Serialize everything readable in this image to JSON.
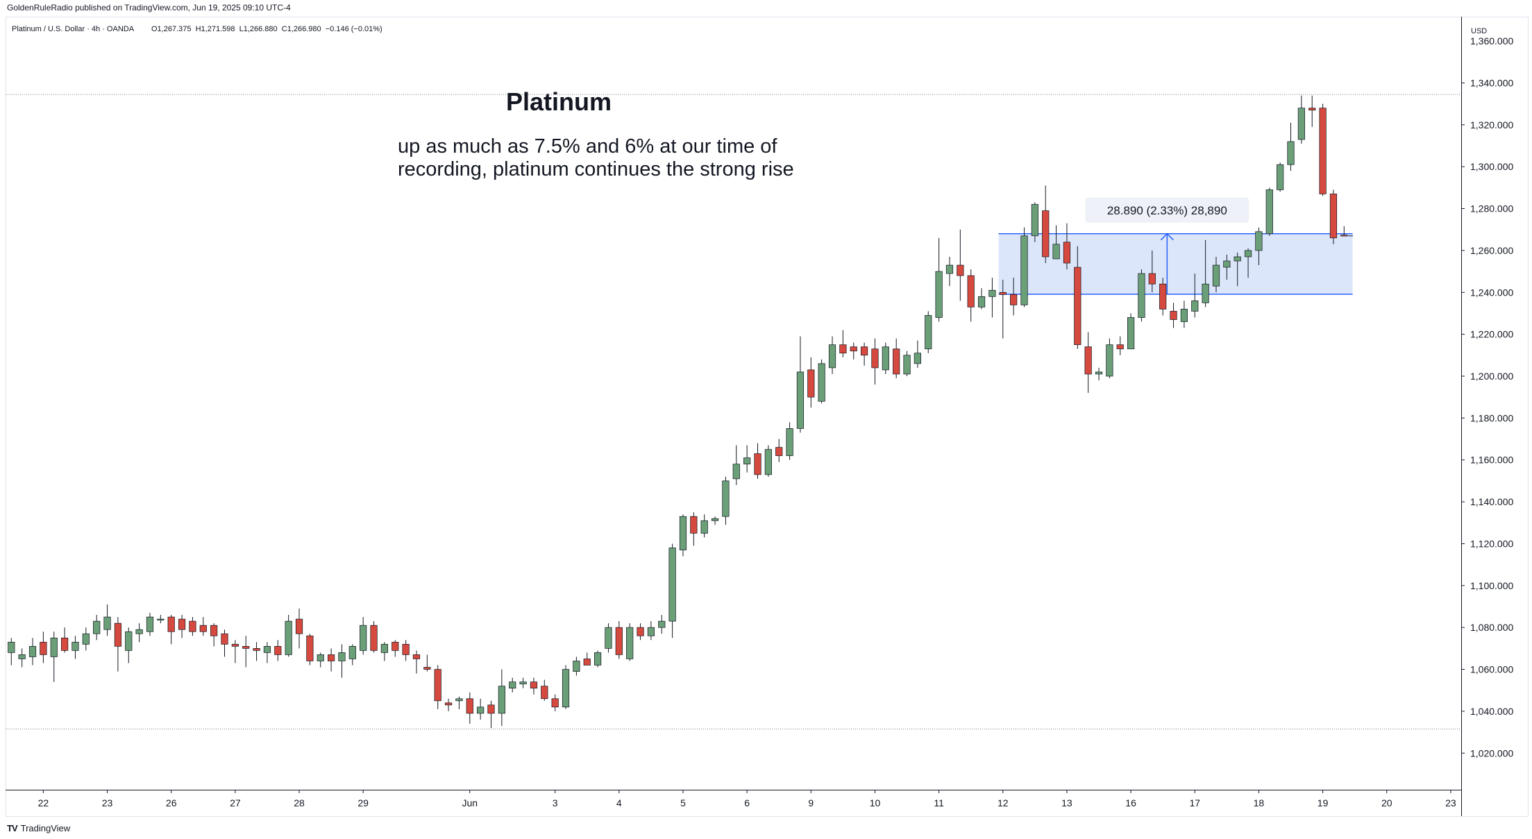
{
  "header": {
    "publisher": "GoldenRuleRadio published on TradingView.com, Jun 19, 2025 09:10 UTC-4",
    "symbol_line": "Platinum / U.S. Dollar · 4h · OANDA",
    "ohlc": "O1,267.375  H1,271.598  L1,266.880  C1,266.980  −0.146 (−0.01%)"
  },
  "footer": {
    "brand": "TradingView",
    "logo": "TV"
  },
  "annotation": {
    "title": "Platinum",
    "line1": "up as much as 7.5% and 6% at our time of",
    "line2": "recording, platinum continues the strong rise",
    "measure_label": "28.890 (2.33%) 28,890"
  },
  "colors": {
    "up": "#6a9f78",
    "down": "#d6493e",
    "range_fill": "#dce6fb",
    "range_line": "#2962ff",
    "axis_text": "#131722"
  },
  "chart_data": {
    "type": "candlestick",
    "title": "Platinum",
    "ylabel": "USD",
    "xlabel": "",
    "ylim": [
      1000,
      1360
    ],
    "grid": false,
    "y_ticks": [
      1020,
      1040,
      1060,
      1080,
      1100,
      1120,
      1140,
      1160,
      1180,
      1200,
      1220,
      1240,
      1260,
      1280,
      1300,
      1320,
      1340
    ],
    "y_tick_labels": [
      "1,020.000",
      "1,040.000",
      "1,060.000",
      "1,080.000",
      "1,100.000",
      "1,120.000",
      "1,140.000",
      "1,160.000",
      "1,180.000",
      "1,200.000",
      "1,220.000",
      "1,240.000",
      "1,260.000",
      "1,280.000",
      "1,300.000",
      "1,320.000",
      "1,340.000"
    ],
    "y_top_partial_label": "1,360.000",
    "x_labels": [
      {
        "label": "22",
        "index": 3
      },
      {
        "label": "23",
        "index": 9
      },
      {
        "label": "26",
        "index": 15
      },
      {
        "label": "27",
        "index": 21
      },
      {
        "label": "28",
        "index": 27
      },
      {
        "label": "29",
        "index": 33
      },
      {
        "label": "Jun",
        "index": 43
      },
      {
        "label": "3",
        "index": 51
      },
      {
        "label": "4",
        "index": 57
      },
      {
        "label": "5",
        "index": 63
      },
      {
        "label": "6",
        "index": 69
      },
      {
        "label": "9",
        "index": 75
      },
      {
        "label": "10",
        "index": 81
      },
      {
        "label": "11",
        "index": 87
      },
      {
        "label": "12",
        "index": 93
      },
      {
        "label": "13",
        "index": 99
      },
      {
        "label": "16",
        "index": 105
      },
      {
        "label": "17",
        "index": 111
      },
      {
        "label": "18",
        "index": 117
      },
      {
        "label": "19",
        "index": 123
      },
      {
        "label": "20",
        "index": 129
      },
      {
        "label": "23",
        "index": 135
      }
    ],
    "index_range": [
      -0.5,
      136.5
    ],
    "dotted_levels": [
      1334.5,
      1031.5
    ],
    "range_box": {
      "start_index": 92.6,
      "end_index": 125.8,
      "top": 1268,
      "bottom": 1239.1
    },
    "measure_arrow_index": 108.4,
    "candles": [
      {
        "o": 1068,
        "h": 1075,
        "l": 1062,
        "c": 1073
      },
      {
        "o": 1065,
        "h": 1070,
        "l": 1061,
        "c": 1067
      },
      {
        "o": 1066,
        "h": 1075,
        "l": 1062,
        "c": 1071
      },
      {
        "o": 1073,
        "h": 1078,
        "l": 1063,
        "c": 1067
      },
      {
        "o": 1066,
        "h": 1078,
        "l": 1054,
        "c": 1075
      },
      {
        "o": 1075,
        "h": 1080,
        "l": 1068,
        "c": 1069
      },
      {
        "o": 1069,
        "h": 1076,
        "l": 1065,
        "c": 1073
      },
      {
        "o": 1072,
        "h": 1080,
        "l": 1069,
        "c": 1077
      },
      {
        "o": 1077,
        "h": 1086,
        "l": 1074,
        "c": 1083
      },
      {
        "o": 1079,
        "h": 1091,
        "l": 1076,
        "c": 1085
      },
      {
        "o": 1082,
        "h": 1085,
        "l": 1059,
        "c": 1071
      },
      {
        "o": 1069,
        "h": 1080,
        "l": 1063,
        "c": 1078
      },
      {
        "o": 1077,
        "h": 1082,
        "l": 1073,
        "c": 1079
      },
      {
        "o": 1078,
        "h": 1087,
        "l": 1076,
        "c": 1085
      },
      {
        "o": 1084,
        "h": 1086,
        "l": 1082,
        "c": 1084
      },
      {
        "o": 1085,
        "h": 1086,
        "l": 1072,
        "c": 1078
      },
      {
        "o": 1084,
        "h": 1086,
        "l": 1075,
        "c": 1079
      },
      {
        "o": 1083,
        "h": 1085,
        "l": 1076,
        "c": 1078
      },
      {
        "o": 1081,
        "h": 1085,
        "l": 1076,
        "c": 1078
      },
      {
        "o": 1081,
        "h": 1082,
        "l": 1071,
        "c": 1076
      },
      {
        "o": 1077,
        "h": 1079,
        "l": 1066,
        "c": 1072
      },
      {
        "o": 1072,
        "h": 1074,
        "l": 1063,
        "c": 1071
      },
      {
        "o": 1071,
        "h": 1076,
        "l": 1061,
        "c": 1070
      },
      {
        "o": 1070,
        "h": 1073,
        "l": 1064,
        "c": 1069
      },
      {
        "o": 1068,
        "h": 1073,
        "l": 1063,
        "c": 1071
      },
      {
        "o": 1071,
        "h": 1074,
        "l": 1064,
        "c": 1067
      },
      {
        "o": 1067,
        "h": 1086,
        "l": 1066,
        "c": 1083
      },
      {
        "o": 1084,
        "h": 1089,
        "l": 1070,
        "c": 1077
      },
      {
        "o": 1076,
        "h": 1077,
        "l": 1062,
        "c": 1064
      },
      {
        "o": 1064,
        "h": 1068,
        "l": 1061,
        "c": 1067
      },
      {
        "o": 1067,
        "h": 1070,
        "l": 1059,
        "c": 1064
      },
      {
        "o": 1064,
        "h": 1072,
        "l": 1056,
        "c": 1068
      },
      {
        "o": 1065,
        "h": 1072,
        "l": 1062,
        "c": 1071
      },
      {
        "o": 1069,
        "h": 1085,
        "l": 1067,
        "c": 1081
      },
      {
        "o": 1081,
        "h": 1083,
        "l": 1068,
        "c": 1069
      },
      {
        "o": 1068,
        "h": 1073,
        "l": 1064,
        "c": 1072
      },
      {
        "o": 1073,
        "h": 1074,
        "l": 1066,
        "c": 1069
      },
      {
        "o": 1072,
        "h": 1074,
        "l": 1064,
        "c": 1067
      },
      {
        "o": 1067,
        "h": 1069,
        "l": 1058,
        "c": 1065
      },
      {
        "o": 1061,
        "h": 1067,
        "l": 1059,
        "c": 1060
      },
      {
        "o": 1060,
        "h": 1062,
        "l": 1041,
        "c": 1045
      },
      {
        "o": 1044,
        "h": 1046,
        "l": 1040,
        "c": 1043
      },
      {
        "o": 1045,
        "h": 1047,
        "l": 1041,
        "c": 1046
      },
      {
        "o": 1046,
        "h": 1049,
        "l": 1034,
        "c": 1039
      },
      {
        "o": 1039,
        "h": 1046,
        "l": 1036,
        "c": 1042
      },
      {
        "o": 1043,
        "h": 1045,
        "l": 1032,
        "c": 1039
      },
      {
        "o": 1039,
        "h": 1060,
        "l": 1033,
        "c": 1052
      },
      {
        "o": 1051,
        "h": 1056,
        "l": 1049,
        "c": 1054
      },
      {
        "o": 1053,
        "h": 1056,
        "l": 1051,
        "c": 1054
      },
      {
        "o": 1054,
        "h": 1056,
        "l": 1048,
        "c": 1051
      },
      {
        "o": 1052,
        "h": 1055,
        "l": 1045,
        "c": 1046
      },
      {
        "o": 1046,
        "h": 1048,
        "l": 1040,
        "c": 1042
      },
      {
        "o": 1042,
        "h": 1062,
        "l": 1041,
        "c": 1060
      },
      {
        "o": 1059,
        "h": 1066,
        "l": 1057,
        "c": 1064
      },
      {
        "o": 1065,
        "h": 1068,
        "l": 1062,
        "c": 1062
      },
      {
        "o": 1062,
        "h": 1069,
        "l": 1061,
        "c": 1068
      },
      {
        "o": 1070,
        "h": 1082,
        "l": 1068,
        "c": 1080
      },
      {
        "o": 1080,
        "h": 1083,
        "l": 1065,
        "c": 1067
      },
      {
        "o": 1065,
        "h": 1082,
        "l": 1064,
        "c": 1080
      },
      {
        "o": 1080,
        "h": 1082,
        "l": 1074,
        "c": 1076
      },
      {
        "o": 1076,
        "h": 1083,
        "l": 1074,
        "c": 1080
      },
      {
        "o": 1080,
        "h": 1086,
        "l": 1077,
        "c": 1083
      },
      {
        "o": 1083,
        "h": 1120,
        "l": 1075,
        "c": 1118
      },
      {
        "o": 1117,
        "h": 1134,
        "l": 1114,
        "c": 1133
      },
      {
        "o": 1133,
        "h": 1135,
        "l": 1119,
        "c": 1125
      },
      {
        "o": 1125,
        "h": 1134,
        "l": 1123,
        "c": 1131
      },
      {
        "o": 1131,
        "h": 1133,
        "l": 1129,
        "c": 1132
      },
      {
        "o": 1133,
        "h": 1152,
        "l": 1129,
        "c": 1150
      },
      {
        "o": 1151,
        "h": 1167,
        "l": 1148,
        "c": 1158
      },
      {
        "o": 1158,
        "h": 1167,
        "l": 1154,
        "c": 1161
      },
      {
        "o": 1163,
        "h": 1168,
        "l": 1151,
        "c": 1153
      },
      {
        "o": 1153,
        "h": 1167,
        "l": 1152,
        "c": 1165
      },
      {
        "o": 1166,
        "h": 1170,
        "l": 1159,
        "c": 1162
      },
      {
        "o": 1162,
        "h": 1178,
        "l": 1160,
        "c": 1175
      },
      {
        "o": 1175,
        "h": 1219,
        "l": 1173,
        "c": 1202
      },
      {
        "o": 1203,
        "h": 1209,
        "l": 1185,
        "c": 1190
      },
      {
        "o": 1188,
        "h": 1208,
        "l": 1187,
        "c": 1206
      },
      {
        "o": 1204,
        "h": 1219,
        "l": 1201,
        "c": 1215
      },
      {
        "o": 1215,
        "h": 1222,
        "l": 1209,
        "c": 1211
      },
      {
        "o": 1214,
        "h": 1216,
        "l": 1208,
        "c": 1212
      },
      {
        "o": 1214,
        "h": 1216,
        "l": 1205,
        "c": 1210
      },
      {
        "o": 1213,
        "h": 1218,
        "l": 1196,
        "c": 1204
      },
      {
        "o": 1203,
        "h": 1216,
        "l": 1201,
        "c": 1214
      },
      {
        "o": 1213,
        "h": 1218,
        "l": 1199,
        "c": 1201
      },
      {
        "o": 1201,
        "h": 1212,
        "l": 1200,
        "c": 1210
      },
      {
        "o": 1206,
        "h": 1217,
        "l": 1204,
        "c": 1211
      },
      {
        "o": 1213,
        "h": 1231,
        "l": 1211,
        "c": 1229
      },
      {
        "o": 1228,
        "h": 1266,
        "l": 1226,
        "c": 1250
      },
      {
        "o": 1249,
        "h": 1257,
        "l": 1243,
        "c": 1253
      },
      {
        "o": 1253,
        "h": 1270,
        "l": 1236,
        "c": 1248
      },
      {
        "o": 1248,
        "h": 1251,
        "l": 1226,
        "c": 1233
      },
      {
        "o": 1233,
        "h": 1242,
        "l": 1232,
        "c": 1238
      },
      {
        "o": 1238,
        "h": 1247,
        "l": 1228,
        "c": 1241
      },
      {
        "o": 1240,
        "h": 1246,
        "l": 1218,
        "c": 1239
      },
      {
        "o": 1239,
        "h": 1247,
        "l": 1229,
        "c": 1234
      },
      {
        "o": 1234,
        "h": 1271,
        "l": 1233,
        "c": 1267
      },
      {
        "o": 1267,
        "h": 1283,
        "l": 1264,
        "c": 1282
      },
      {
        "o": 1279,
        "h": 1291,
        "l": 1254,
        "c": 1257
      },
      {
        "o": 1256,
        "h": 1272,
        "l": 1256,
        "c": 1263
      },
      {
        "o": 1264,
        "h": 1273,
        "l": 1251,
        "c": 1254
      },
      {
        "o": 1252,
        "h": 1262,
        "l": 1213,
        "c": 1215
      },
      {
        "o": 1214,
        "h": 1221,
        "l": 1192,
        "c": 1201
      },
      {
        "o": 1201,
        "h": 1204,
        "l": 1198,
        "c": 1202
      },
      {
        "o": 1200,
        "h": 1218,
        "l": 1199,
        "c": 1215
      },
      {
        "o": 1215,
        "h": 1219,
        "l": 1210,
        "c": 1213
      },
      {
        "o": 1213,
        "h": 1230,
        "l": 1213,
        "c": 1228
      },
      {
        "o": 1228,
        "h": 1251,
        "l": 1226,
        "c": 1249
      },
      {
        "o": 1249,
        "h": 1260,
        "l": 1240,
        "c": 1244
      },
      {
        "o": 1244,
        "h": 1247,
        "l": 1229,
        "c": 1232
      },
      {
        "o": 1231,
        "h": 1235,
        "l": 1223,
        "c": 1227
      },
      {
        "o": 1226,
        "h": 1236,
        "l": 1223,
        "c": 1232
      },
      {
        "o": 1231,
        "h": 1249,
        "l": 1228,
        "c": 1236
      },
      {
        "o": 1235,
        "h": 1265,
        "l": 1233,
        "c": 1244
      },
      {
        "o": 1243,
        "h": 1257,
        "l": 1240,
        "c": 1253
      },
      {
        "o": 1252,
        "h": 1258,
        "l": 1246,
        "c": 1255
      },
      {
        "o": 1255,
        "h": 1259,
        "l": 1243,
        "c": 1257
      },
      {
        "o": 1257,
        "h": 1261,
        "l": 1247,
        "c": 1260
      },
      {
        "o": 1260,
        "h": 1271,
        "l": 1253,
        "c": 1269
      },
      {
        "o": 1268,
        "h": 1290,
        "l": 1267,
        "c": 1289
      },
      {
        "o": 1289,
        "h": 1302,
        "l": 1288,
        "c": 1301
      },
      {
        "o": 1301,
        "h": 1321,
        "l": 1298,
        "c": 1312
      },
      {
        "o": 1313,
        "h": 1334,
        "l": 1311,
        "c": 1328
      },
      {
        "o": 1328,
        "h": 1334,
        "l": 1319,
        "c": 1327
      },
      {
        "o": 1328,
        "h": 1330,
        "l": 1286,
        "c": 1287
      },
      {
        "o": 1287,
        "h": 1289,
        "l": 1263,
        "c": 1266
      },
      {
        "o": 1267.375,
        "h": 1271.598,
        "l": 1266.88,
        "c": 1266.98
      }
    ]
  }
}
